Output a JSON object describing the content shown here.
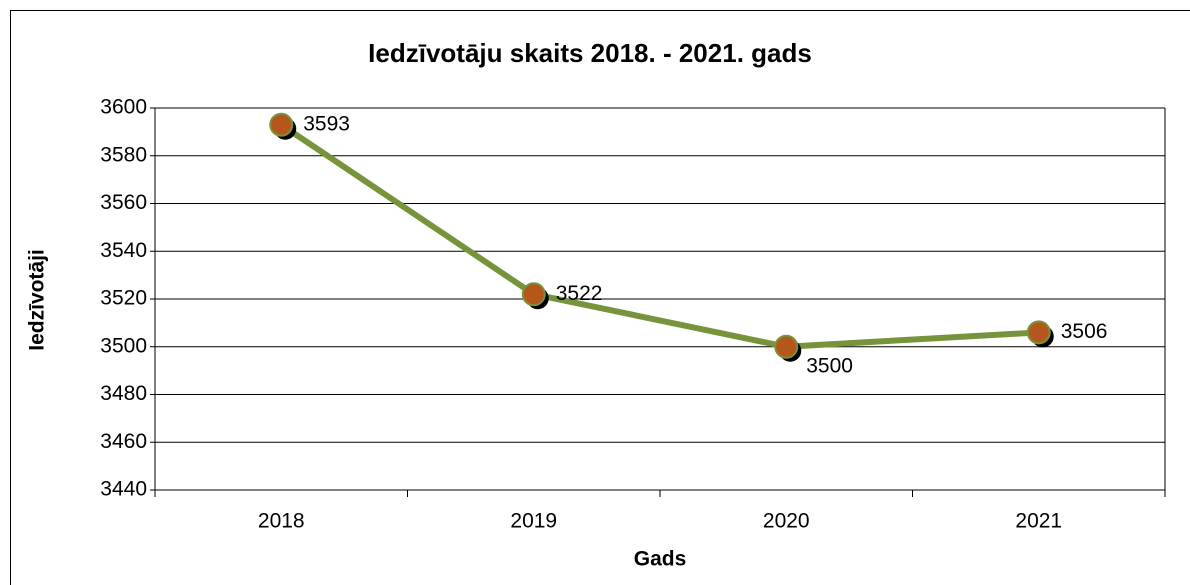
{
  "chart_data": {
    "type": "line",
    "title": "Iedzīvotāju skaits 2018. - 2021. gads",
    "x_label": "Gads",
    "y_label": "Iedzīvotāji",
    "categories": [
      "2018",
      "2019",
      "2020",
      "2021"
    ],
    "series": [
      {
        "name": "Iedzīvotāji",
        "color": "#77933c",
        "marker_color": "#b5561b",
        "values": [
          3593,
          3522,
          3500,
          3506
        ]
      }
    ],
    "ylim": [
      3440,
      3600
    ],
    "yticks": [
      3440,
      3460,
      3480,
      3500,
      3520,
      3540,
      3560,
      3580,
      3600
    ],
    "grid": true
  }
}
